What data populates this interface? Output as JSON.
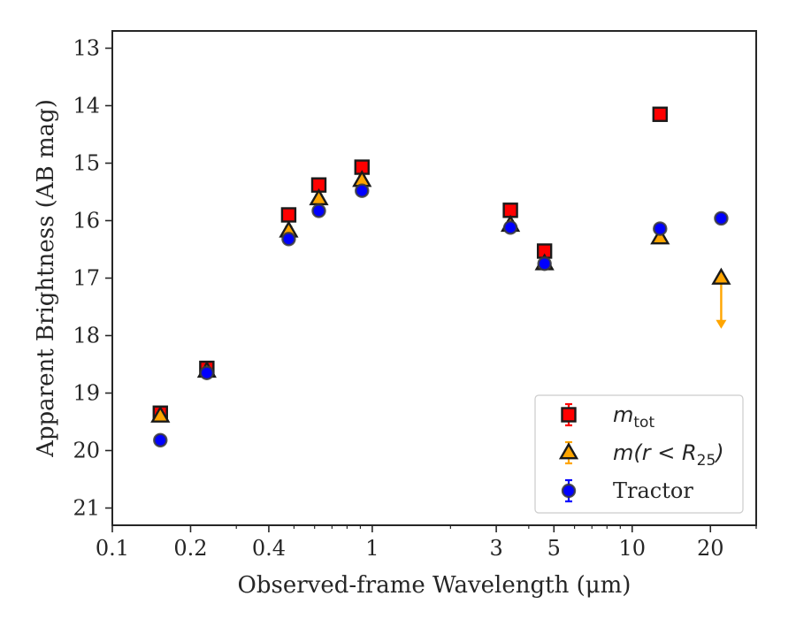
{
  "chart_data": {
    "type": "scatter",
    "title": "",
    "xlabel": "Observed-frame Wavelength (μm)",
    "ylabel": "Apparent Brightness (AB mag)",
    "xscale": "log",
    "xlim": [
      0.1,
      30
    ],
    "ylim": [
      12.7,
      21.3
    ],
    "yaxis_inverted": true,
    "grid": false,
    "legend_position": "bottom-right",
    "x_ticks": [
      "0.1",
      "0.2",
      "0.4",
      "1",
      "3",
      "5",
      "10",
      "20"
    ],
    "y_ticks": [
      "13",
      "14",
      "15",
      "16",
      "17",
      "18",
      "19",
      "20",
      "21"
    ],
    "series": [
      {
        "name": "m_tot",
        "legend_label": "m",
        "legend_subscript": "tot",
        "marker": "square",
        "color": "#ff0000",
        "edge_color": "#1a1a1a",
        "error_color": "#ff0000",
        "points": [
          {
            "x": 0.153,
            "y": 19.35
          },
          {
            "x": 0.231,
            "y": 18.57
          },
          {
            "x": 0.477,
            "y": 15.9
          },
          {
            "x": 0.623,
            "y": 15.38
          },
          {
            "x": 0.913,
            "y": 15.07
          },
          {
            "x": 3.4,
            "y": 15.82
          },
          {
            "x": 4.6,
            "y": 16.53
          },
          {
            "x": 12.8,
            "y": 14.15
          }
        ]
      },
      {
        "name": "m(r < R25)",
        "legend_label": "m(r < R",
        "legend_subscript": "25",
        "legend_suffix": ")",
        "marker": "triangle",
        "color": "#ffa500",
        "edge_color": "#1a1a1a",
        "error_color": "#ffa500",
        "points": [
          {
            "x": 0.153,
            "y": 19.4
          },
          {
            "x": 0.231,
            "y": 18.62
          },
          {
            "x": 0.477,
            "y": 16.18
          },
          {
            "x": 0.623,
            "y": 15.62
          },
          {
            "x": 0.913,
            "y": 15.3
          },
          {
            "x": 3.4,
            "y": 16.08
          },
          {
            "x": 4.6,
            "y": 16.75
          },
          {
            "x": 12.8,
            "y": 16.3
          },
          {
            "x": 22.0,
            "y": 17.0,
            "upper_limit": true,
            "limit_to": 17.85
          }
        ]
      },
      {
        "name": "Tractor",
        "legend_label": "Tractor",
        "marker": "circle",
        "color": "#0000ff",
        "edge_color": "#3a3a3a",
        "error_color": "#0000ff",
        "points": [
          {
            "x": 0.153,
            "y": 19.82
          },
          {
            "x": 0.231,
            "y": 18.65
          },
          {
            "x": 0.477,
            "y": 16.32
          },
          {
            "x": 0.623,
            "y": 15.83
          },
          {
            "x": 0.913,
            "y": 15.48
          },
          {
            "x": 3.4,
            "y": 16.12
          },
          {
            "x": 4.6,
            "y": 16.75
          },
          {
            "x": 12.8,
            "y": 16.14
          },
          {
            "x": 22.0,
            "y": 15.96
          }
        ]
      }
    ]
  }
}
